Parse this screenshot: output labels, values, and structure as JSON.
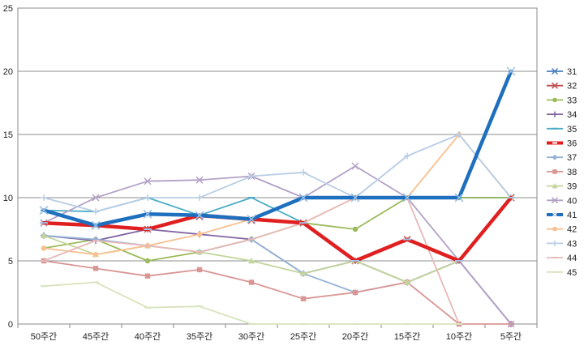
{
  "chart_data": {
    "type": "line",
    "title": "",
    "xlabel": "",
    "ylabel": "",
    "categories": [
      "50주간",
      "45주간",
      "40주간",
      "35주간",
      "30주간",
      "25주간",
      "20주간",
      "15주간",
      "10주간",
      "5주간"
    ],
    "ylim": [
      0,
      25
    ],
    "yticks": [
      "0",
      "5",
      "10",
      "15",
      "20",
      "25"
    ],
    "grid": "horizontal",
    "legend_position": "right",
    "series": [
      {
        "name": "31",
        "color": "#4a7ebb",
        "marker": "x",
        "weight": "normal",
        "values": [
          9.0,
          7.8,
          8.7,
          8.5,
          8.3,
          10.0,
          10.0,
          10.0,
          10.0,
          10.0
        ]
      },
      {
        "name": "32",
        "color": "#c0504d",
        "marker": "x",
        "weight": "normal",
        "values": [
          8.0,
          7.8,
          7.5,
          8.5,
          8.2,
          8.0,
          5.0,
          6.7,
          5.0,
          10.0
        ]
      },
      {
        "name": "33",
        "color": "#9bbb59",
        "marker": "circle",
        "weight": "normal",
        "values": [
          6.0,
          6.7,
          5.0,
          5.7,
          6.7,
          8.0,
          7.5,
          10.0,
          10.0,
          10.0
        ]
      },
      {
        "name": "34",
        "color": "#8064a2",
        "marker": "plus",
        "weight": "normal",
        "values": [
          7.0,
          6.6,
          7.5,
          7.1,
          6.7,
          4.0,
          5.0,
          3.3,
          5.0,
          0.0
        ]
      },
      {
        "name": "35",
        "color": "#4bacc6",
        "marker": "dash",
        "weight": "normal",
        "values": [
          9.0,
          8.9,
          10.0,
          8.6,
          10.0,
          8.0,
          5.0,
          6.7,
          5.0,
          10.0
        ]
      },
      {
        "name": "36",
        "color": "#e02020",
        "marker": "dash",
        "weight": "bold",
        "values": [
          8.0,
          7.8,
          7.5,
          8.6,
          8.3,
          8.0,
          5.0,
          6.7,
          5.0,
          10.0
        ]
      },
      {
        "name": "37",
        "color": "#95b3d7",
        "marker": "diamond",
        "weight": "normal",
        "values": [
          7.0,
          6.7,
          6.2,
          5.7,
          6.7,
          4.0,
          2.5,
          3.3,
          5.0,
          10.0
        ]
      },
      {
        "name": "38",
        "color": "#d99694",
        "marker": "square",
        "weight": "normal",
        "values": [
          5.0,
          4.4,
          3.8,
          4.3,
          3.3,
          2.0,
          2.5,
          3.3,
          0.0,
          0.0
        ]
      },
      {
        "name": "39",
        "color": "#c3d69b",
        "marker": "triangle",
        "weight": "normal",
        "values": [
          7.0,
          5.5,
          6.2,
          5.7,
          5.0,
          4.0,
          5.0,
          3.3,
          5.0,
          10.0
        ]
      },
      {
        "name": "40",
        "color": "#b3a2c7",
        "marker": "x",
        "weight": "normal",
        "values": [
          8.0,
          10.0,
          11.3,
          11.4,
          11.7,
          10.0,
          12.5,
          10.0,
          5.0,
          0.0
        ]
      },
      {
        "name": "41",
        "color": "#1f6fbf",
        "marker": "x",
        "weight": "bold",
        "values": [
          9.0,
          7.8,
          8.7,
          8.6,
          8.3,
          10.0,
          10.0,
          10.0,
          10.0,
          20.0
        ]
      },
      {
        "name": "42",
        "color": "#fac090",
        "marker": "circle",
        "weight": "normal",
        "values": [
          6.0,
          5.5,
          6.2,
          7.1,
          8.3,
          8.0,
          10.0,
          10.0,
          15.0,
          10.0
        ]
      },
      {
        "name": "43",
        "color": "#b9cde5",
        "marker": "plus",
        "weight": "normal",
        "values": [
          10.0,
          8.9,
          10.0,
          10.0,
          11.7,
          12.0,
          10.0,
          13.3,
          15.0,
          10.0
        ]
      },
      {
        "name": "44",
        "color": "#e6b9b8",
        "marker": "dash",
        "weight": "normal",
        "values": [
          5.0,
          6.6,
          6.2,
          5.7,
          6.7,
          8.0,
          10.0,
          10.0,
          0.0,
          null
        ]
      },
      {
        "name": "45",
        "color": "#d7e4bd",
        "marker": "dash",
        "weight": "normal",
        "values": [
          3.0,
          3.3,
          1.3,
          1.4,
          0.0,
          0.0,
          0.0,
          0.0,
          0.0,
          null
        ]
      }
    ]
  }
}
